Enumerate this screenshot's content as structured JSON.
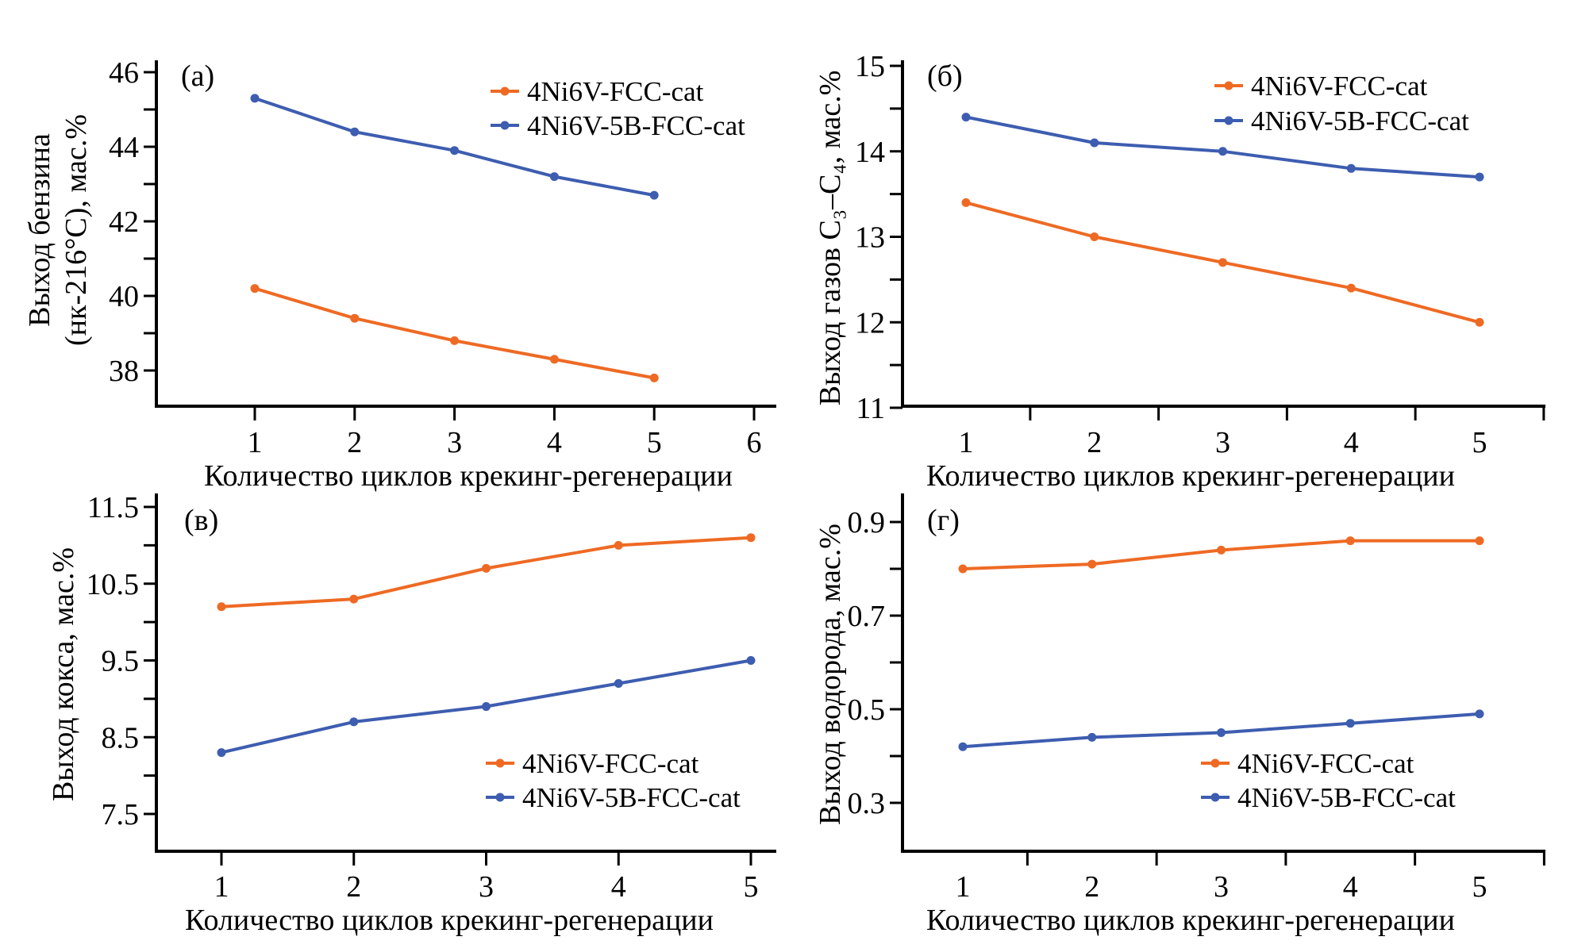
{
  "figure": {
    "colors": {
      "series_a": "#EE6A24",
      "series_b": "#3D5DB0",
      "axis": "#000000"
    }
  },
  "chart_data": [
    {
      "id": "a",
      "type": "line",
      "panel_label": "(a)",
      "title": "",
      "xlabel": "Количество циклов крекинг-регенерации",
      "ylabel_lines": [
        "Выход бензина",
        "(нк-216°С), мас.%"
      ],
      "x": [
        1,
        2,
        3,
        4,
        5
      ],
      "xticks": [
        1,
        2,
        3,
        4,
        5,
        6
      ],
      "xtick_labels": [
        "1",
        "2",
        "3",
        "4",
        "5",
        "6"
      ],
      "xlim": [
        0,
        6.2
      ],
      "xtick_style": "on-value",
      "ylim": [
        36.8,
        46.5
      ],
      "yticks_major": [
        38,
        40,
        42,
        44,
        46
      ],
      "ytick_labels": [
        "38",
        "40",
        "42",
        "44",
        "46"
      ],
      "yticks_minor": [
        39,
        41,
        43,
        45
      ],
      "grid": false,
      "legend_position": "top-right",
      "series": [
        {
          "name": "4Ni6V-FCC-cat",
          "color": "#EE6A24",
          "values": [
            40.2,
            39.4,
            38.8,
            38.3,
            37.8
          ]
        },
        {
          "name": "4Ni6V-5B-FCC-cat",
          "color": "#3D5DB0",
          "values": [
            45.3,
            44.4,
            43.9,
            43.2,
            42.7
          ]
        }
      ]
    },
    {
      "id": "b",
      "type": "line",
      "panel_label": "(б)",
      "title": "",
      "xlabel": "Количество циклов крекинг-регенерации",
      "ylabel_lines": [
        "Выход газов C₃–C₄, мас.%"
      ],
      "x": [
        1,
        2,
        3,
        4,
        5
      ],
      "xticks": [
        1,
        2,
        3,
        4,
        5
      ],
      "xtick_labels": [
        "1",
        "2",
        "3",
        "4",
        "5"
      ],
      "xlim": [
        0.5,
        5.5
      ],
      "xtick_style": "between-categories",
      "ylim": [
        11,
        15.2
      ],
      "yticks_major": [
        11,
        12,
        13,
        14,
        15
      ],
      "ytick_labels": [
        "11",
        "12",
        "13",
        "14",
        "15"
      ],
      "yticks_minor": [
        11.5,
        12.5,
        13.5,
        14.5
      ],
      "grid": false,
      "legend_position": "top-right",
      "series": [
        {
          "name": "4Ni6V-FCC-cat",
          "color": "#EE6A24",
          "values": [
            13.4,
            13.0,
            12.7,
            12.4,
            12.0
          ]
        },
        {
          "name": "4Ni6V-5B-FCC-cat",
          "color": "#3D5DB0",
          "values": [
            14.4,
            14.1,
            14.0,
            13.8,
            13.7
          ]
        }
      ]
    },
    {
      "id": "c",
      "type": "line",
      "panel_label": "(в)",
      "title": "",
      "xlabel": "Количество циклов крекинг-регенерации",
      "ylabel_lines": [
        "Выход кокса, мас.%"
      ],
      "x": [
        1,
        2,
        3,
        4,
        5
      ],
      "xticks": [
        1,
        2,
        3,
        4,
        5
      ],
      "xtick_labels": [
        "1",
        "2",
        "3",
        "4",
        "5"
      ],
      "xlim": [
        0.5,
        5.2
      ],
      "xtick_style": "on-value",
      "ylim": [
        7.0,
        11.7
      ],
      "yticks_major": [
        7.5,
        8.5,
        9.5,
        10.5,
        11.5
      ],
      "ytick_labels": [
        "7.5",
        "8.5",
        "9.5",
        "10.5",
        "11.5"
      ],
      "yticks_minor": [
        8.0,
        9.0,
        10.0,
        11.0
      ],
      "grid": false,
      "legend_position": "bottom-right",
      "series": [
        {
          "name": "4Ni6V-FCC-cat",
          "color": "#EE6A24",
          "values": [
            10.2,
            10.3,
            10.7,
            11.0,
            11.1
          ]
        },
        {
          "name": "4Ni6V-5B-FCC-cat",
          "color": "#3D5DB0",
          "values": [
            8.3,
            8.7,
            8.9,
            9.2,
            9.5
          ]
        }
      ]
    },
    {
      "id": "d",
      "type": "line",
      "panel_label": "(г)",
      "title": "",
      "xlabel": "Количество циклов крекинг-регенерации",
      "ylabel_lines": [
        "Выход водорода, мас.%"
      ],
      "x": [
        1,
        2,
        3,
        4,
        5
      ],
      "xticks": [
        1,
        2,
        3,
        4,
        5
      ],
      "xtick_labels": [
        "1",
        "2",
        "3",
        "4",
        "5"
      ],
      "xlim": [
        0.5,
        5.5
      ],
      "xtick_style": "between-categories",
      "ylim": [
        0.21,
        0.94
      ],
      "yticks_major": [
        0.3,
        0.5,
        0.7,
        0.9
      ],
      "ytick_labels": [
        "0.3",
        "0.5",
        "0.7",
        "0.9"
      ],
      "yticks_minor": [
        0.4,
        0.6,
        0.8
      ],
      "grid": false,
      "legend_position": "bottom-right",
      "series": [
        {
          "name": "4Ni6V-FCC-cat",
          "color": "#EE6A24",
          "values": [
            0.8,
            0.81,
            0.84,
            0.86,
            0.86
          ]
        },
        {
          "name": "4Ni6V-5B-FCC-cat",
          "color": "#3D5DB0",
          "values": [
            0.42,
            0.44,
            0.45,
            0.47,
            0.49
          ]
        }
      ]
    }
  ]
}
